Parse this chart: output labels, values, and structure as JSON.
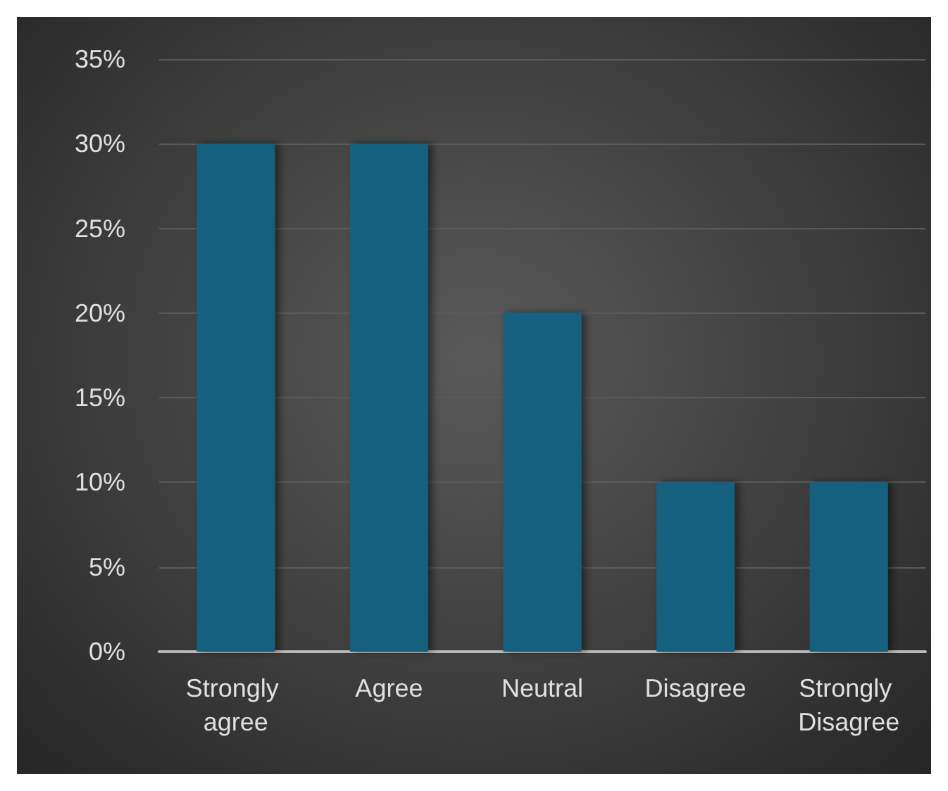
{
  "chart_data": {
    "type": "bar",
    "categories": [
      "Strongly agree",
      "Agree",
      "Neutral",
      "Disagree",
      "Strongly Disagree"
    ],
    "values": [
      30,
      30,
      20,
      10,
      10
    ],
    "color": "#16607f",
    "ylim": [
      0,
      35
    ],
    "yticks": [
      {
        "value": 0,
        "label": "0%"
      },
      {
        "value": 5,
        "label": "5%"
      },
      {
        "value": 10,
        "label": "10%"
      },
      {
        "value": 15,
        "label": "15%"
      },
      {
        "value": 20,
        "label": "20%"
      },
      {
        "value": 25,
        "label": "25%"
      },
      {
        "value": 30,
        "label": "30%"
      },
      {
        "value": 35,
        "label": "35%"
      }
    ],
    "grid": "y"
  }
}
